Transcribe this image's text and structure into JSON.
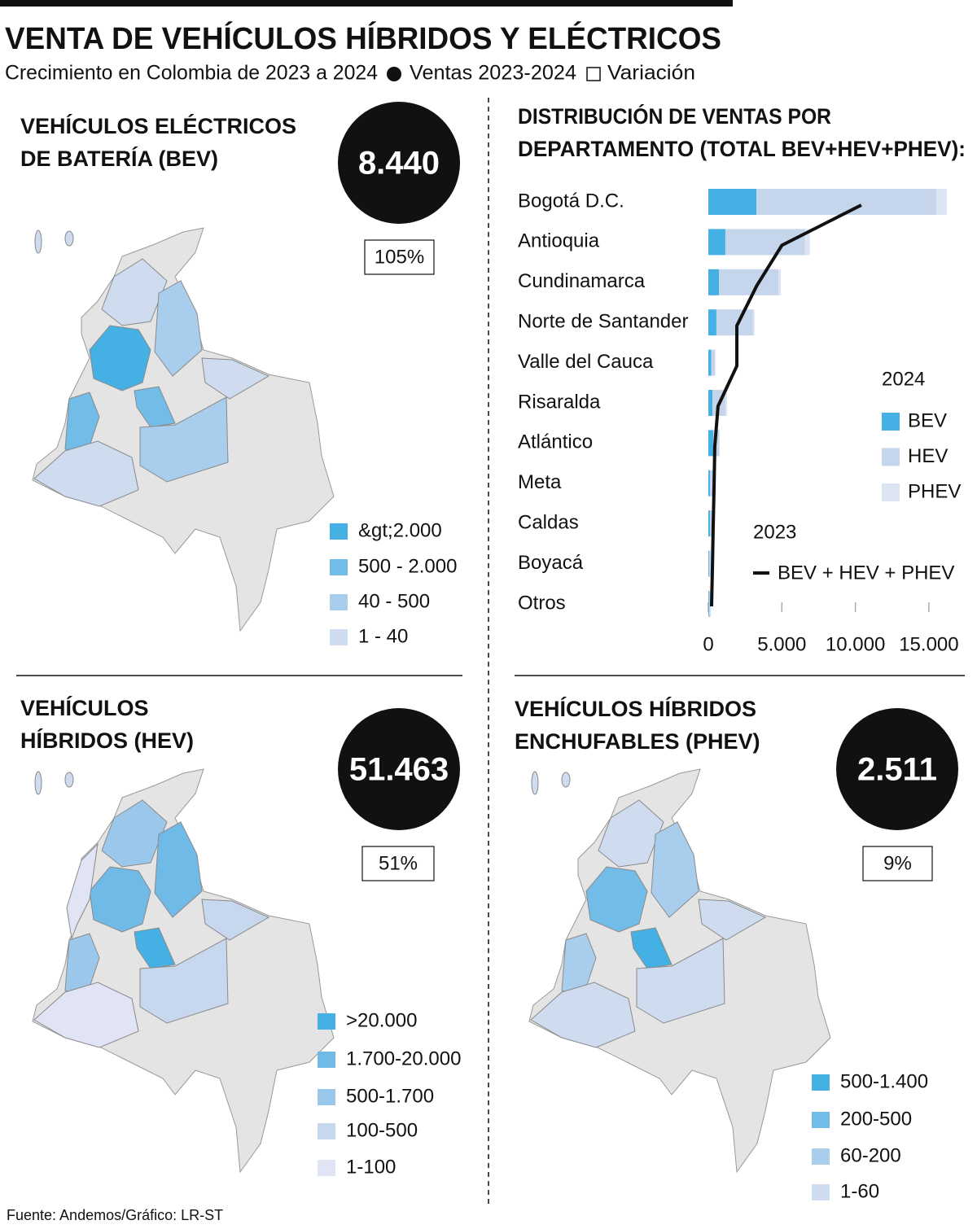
{
  "header": {
    "title": "VENTA DE VEHÍCULOS HÍBRIDOS Y ELÉCTRICOS",
    "subtitle": "Crecimiento en Colombia de 2023 a 2024",
    "legend": [
      "Ventas 2023-2024",
      "Variación"
    ]
  },
  "panels": [
    {
      "title_lines": [
        "VEHÍCULOS ELÉCTRICOS",
        "DE BATERÍA (BEV)"
      ],
      "total": "8.440",
      "variation": "105%",
      "legend": [
        "&gt;2.000",
        "500 - 2.000",
        "40 - 500",
        "1 - 40"
      ]
    },
    {
      "title_lines": [
        "VEHÍCULOS",
        "HÍBRIDOS (HEV)"
      ],
      "total": "51.463",
      "variation": "51%",
      "legend": [
        ">20.000",
        "1.700-20.000",
        "500-1.700",
        "100-500",
        "1-100"
      ]
    },
    {
      "title_lines": [
        "VEHÍCULOS HÍBRIDOS",
        "ENCHUFABLES (PHEV)"
      ],
      "total": "2.511",
      "variation": "9%",
      "legend": [
        "500-1.400",
        "200-500",
        "60-200",
        "1-60"
      ]
    }
  ],
  "chart_data": {
    "type": "bar",
    "orientation": "horizontal",
    "stacked": true,
    "title_lines": [
      "DISTRIBUCIÓN DE VENTAS POR",
      "DEPARTAMENTO (TOTAL BEV+HEV+PHEV):"
    ],
    "categories": [
      "Bogotá D.C.",
      "Antioquia",
      "Cundinamarca",
      "Norte de Santander",
      "Valle del Cauca",
      "Risaralda",
      "Atlántico",
      "Meta",
      "Caldas",
      "Boyacá",
      "Otros"
    ],
    "legend_titles": [
      "2024",
      "2023"
    ],
    "series": [
      {
        "name": "BEV",
        "color": "#45b0e3",
        "values": [
          3270,
          1160,
          720,
          550,
          200,
          280,
          330,
          110,
          110,
          50,
          50
        ]
      },
      {
        "name": "HEV",
        "color": "#c5d5ec",
        "values": [
          12230,
          5420,
          4040,
          2490,
          250,
          890,
          390,
          300,
          300,
          100,
          100
        ]
      },
      {
        "name": "PHEV",
        "color": "#dde5f3",
        "values": [
          720,
          330,
          170,
          110,
          30,
          110,
          60,
          30,
          30,
          20,
          20
        ]
      },
      {
        "name": "BEV + HEV + PHEV",
        "type": "line",
        "color": "#111111",
        "values": [
          10400,
          5000,
          3300,
          1940,
          1940,
          660,
          440,
          390,
          330,
          280,
          220
        ]
      }
    ],
    "xlim": [
      0,
      16500
    ],
    "xticks": [
      0,
      {
        "value": 5000,
        "label": "5.000"
      },
      {
        "value": 10000,
        "label": "10.000"
      },
      {
        "value": 15000,
        "label": "15.000"
      }
    ]
  },
  "footer": {
    "source": "Fuente: Andemos/Gráfico: LR-ST"
  }
}
